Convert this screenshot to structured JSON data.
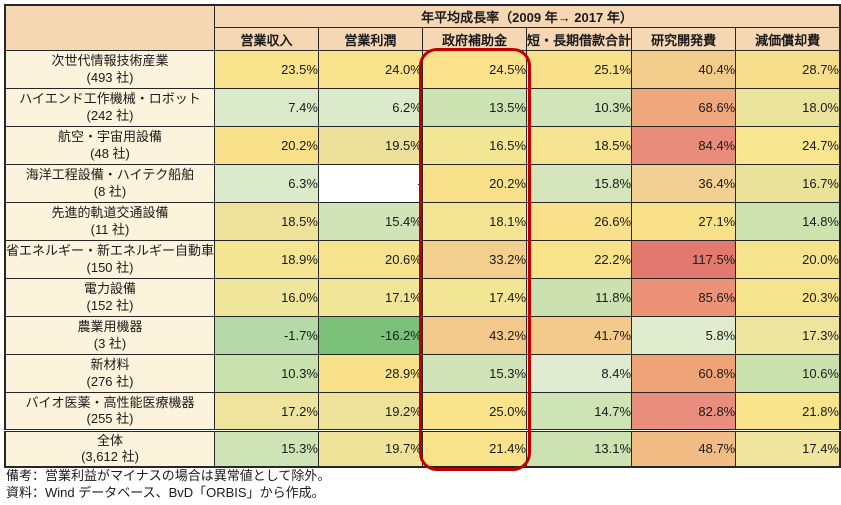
{
  "table": {
    "top_header": "年平均成長率（2009 年→ 2017 年）",
    "columns": [
      "営業収入",
      "営業利潤",
      "政府補助金",
      "短・長期借款合計",
      "研究開発費",
      "減価償却費"
    ],
    "rows": [
      {
        "label": "次世代情報技術産業",
        "count": "(493 社)",
        "values": [
          "23.5%",
          "24.0%",
          "24.5%",
          "25.1%",
          "40.4%",
          "28.7%"
        ],
        "colors": [
          "#F9E38C",
          "#F9E38C",
          "#F9E28B",
          "#F8E18A",
          "#F2CC8A",
          "#F7DE8C"
        ]
      },
      {
        "label": "ハイエンド工作機械・ロボット",
        "count": "(242 社)",
        "values": [
          "7.4%",
          "6.2%",
          "13.5%",
          "10.3%",
          "68.6%",
          "18.0%"
        ],
        "colors": [
          "#DCEACC",
          "#DCEACC",
          "#CDE3B1",
          "#D2E5B9",
          "#EFA77C",
          "#EAE39C"
        ]
      },
      {
        "label": "航空・宇宙用設備",
        "count": "(48 社)",
        "values": [
          "20.2%",
          "19.5%",
          "16.5%",
          "18.5%",
          "84.4%",
          "24.7%"
        ],
        "colors": [
          "#F8E18A",
          "#EDE09A",
          "#F2E593",
          "#F5E391",
          "#E98C7B",
          "#F7E590"
        ]
      },
      {
        "label": "海洋工程設備・ハイテク船舶",
        "count": "(8 社)",
        "values": [
          "6.3%",
          "-",
          "20.2%",
          "15.8%",
          "36.4%",
          "16.7%"
        ],
        "colors": [
          "#DCEACC",
          "#FFFFFF",
          "#F8E18A",
          "#D5E6BD",
          "#F2CF92",
          "#E9E29B"
        ]
      },
      {
        "label": "先進的軌道交通設備",
        "count": "(11 社)",
        "values": [
          "18.5%",
          "15.4%",
          "18.1%",
          "26.6%",
          "27.1%",
          "14.8%"
        ],
        "colors": [
          "#EFE39B",
          "#D0E4B7",
          "#F3E593",
          "#F8E18A",
          "#F8E189",
          "#CDE2AE"
        ]
      },
      {
        "label": "省エネルギー・新エネルギー自動車",
        "count": "(150 社)",
        "values": [
          "18.9%",
          "20.6%",
          "33.2%",
          "22.2%",
          "117.5%",
          "20.0%"
        ],
        "colors": [
          "#F3E591",
          "#F6E38E",
          "#F3CF8D",
          "#F8E38B",
          "#E2796F",
          "#F6E38E"
        ]
      },
      {
        "label": "電力設備",
        "count": "(152 社)",
        "values": [
          "16.0%",
          "17.1%",
          "17.4%",
          "11.8%",
          "85.6%",
          "20.3%"
        ],
        "colors": [
          "#EFE69C",
          "#F1E697",
          "#F2E695",
          "#CBE2B0",
          "#EC9377",
          "#F6E38D"
        ]
      },
      {
        "label": "農業用機器",
        "count": "(3 社)",
        "values": [
          "-1.7%",
          "-16.2%",
          "43.2%",
          "41.7%",
          "5.8%",
          "17.3%"
        ],
        "colors": [
          "#B5D9A8",
          "#7BC17A",
          "#F3C98B",
          "#F3CA8C",
          "#DFEDCE",
          "#EDE49E"
        ]
      },
      {
        "label": "新材料",
        "count": "(276 社)",
        "values": [
          "10.3%",
          "28.9%",
          "15.3%",
          "8.4%",
          "60.8%",
          "10.6%"
        ],
        "colors": [
          "#C9E1AD",
          "#F8E189",
          "#D0E4B7",
          "#DFECD2",
          "#EFA478",
          "#CAE1AE"
        ]
      },
      {
        "label": "バイオ医薬・高性能医療機器",
        "count": "(255 社)",
        "values": [
          "17.2%",
          "19.2%",
          "25.0%",
          "14.7%",
          "82.8%",
          "21.8%"
        ],
        "colors": [
          "#EFE49D",
          "#EEE29B",
          "#F9E38B",
          "#CFE4B5",
          "#E98E7D",
          "#F8E48C"
        ]
      },
      {
        "label": "全体",
        "count": "(3,612 社)",
        "values": [
          "15.3%",
          "19.7%",
          "21.4%",
          "13.1%",
          "48.7%",
          "17.4%"
        ],
        "colors": [
          "#CFE4B5",
          "#EFE299",
          "#F8E38B",
          "#CCE2B1",
          "#F1BC83",
          "#EFE59C"
        ]
      }
    ]
  },
  "highlight": {
    "column": "政府補助金",
    "color": "#C00000"
  },
  "palette": {
    "header_bg": "#F6D7B4",
    "label_bg": "#FCF3DC",
    "border": "#262626"
  },
  "notes": {
    "line1": "備考：営業利益がマイナスの場合は異常値として除外。",
    "line2": "資料：Wind データベース、BvD「ORBIS」から作成。"
  }
}
